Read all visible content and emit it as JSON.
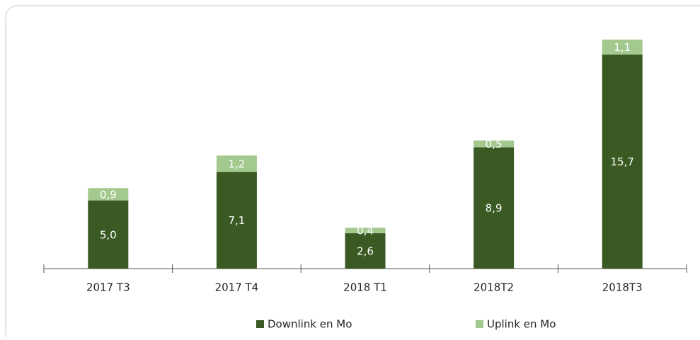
{
  "chart_data": {
    "type": "stacked-bar",
    "categories": [
      "2017  T3",
      "2017  T4",
      "2018 T1",
      "2018T2",
      "2018T3"
    ],
    "series": [
      {
        "name": "Downlink en Mo",
        "color": "#3b5a23",
        "values": [
          5.0,
          7.1,
          2.6,
          8.9,
          15.7
        ],
        "value_labels": [
          "5,0",
          "7,1",
          "2,6",
          "8,9",
          "15,7"
        ]
      },
      {
        "name": "Uplink en Mo",
        "color": "#a4c98f",
        "values": [
          0.9,
          1.2,
          0.4,
          0.5,
          1.1
        ],
        "value_labels": [
          "0,9",
          "1,2",
          "0,4",
          "0,5",
          "1,1"
        ]
      }
    ],
    "legend": "bottom"
  }
}
